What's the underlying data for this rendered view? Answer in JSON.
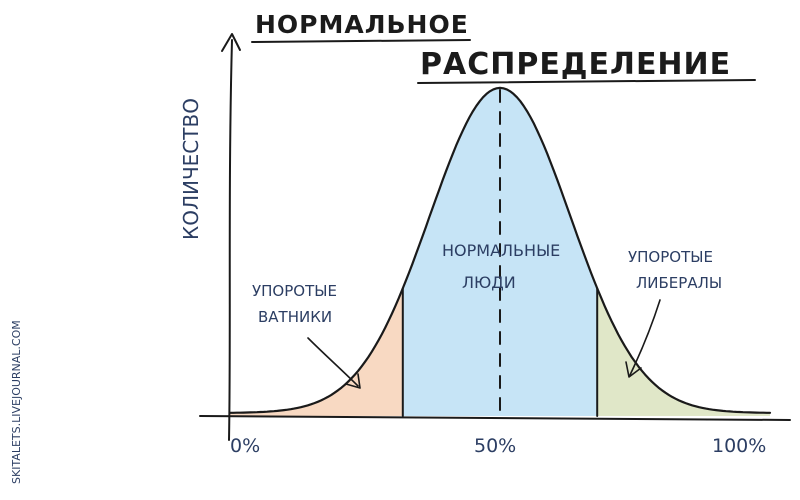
{
  "title": {
    "line1": "НОРМАЛЬНОЕ",
    "line2": "РАСПРЕДЕЛЕНИЕ"
  },
  "axis": {
    "ylabel": "КОЛИЧЕСТВО",
    "x_ticks": [
      "0%",
      "50%",
      "100%"
    ],
    "x_domain": [
      0,
      100
    ],
    "mean": 50
  },
  "regions": {
    "left": {
      "line1": "УПОРОТЫЕ",
      "line2": "ВАТНИКИ",
      "color": "#f2b98f",
      "x_to": 32
    },
    "middle": {
      "line1": "НОРМАЛЬНЫЕ",
      "line2": "ЛЮДИ",
      "color": "#8ec9ee"
    },
    "right": {
      "line1": "УПОРОТЫЕ",
      "line2": "ЛИБЕРАЛЫ",
      "color": "#c6d49a",
      "x_from": 68
    }
  },
  "credit": "SKITALETS.LIVEJOURNAL.COM",
  "colors": {
    "ink": "#1a1a1a",
    "label_ink": "#2c3e63"
  }
}
